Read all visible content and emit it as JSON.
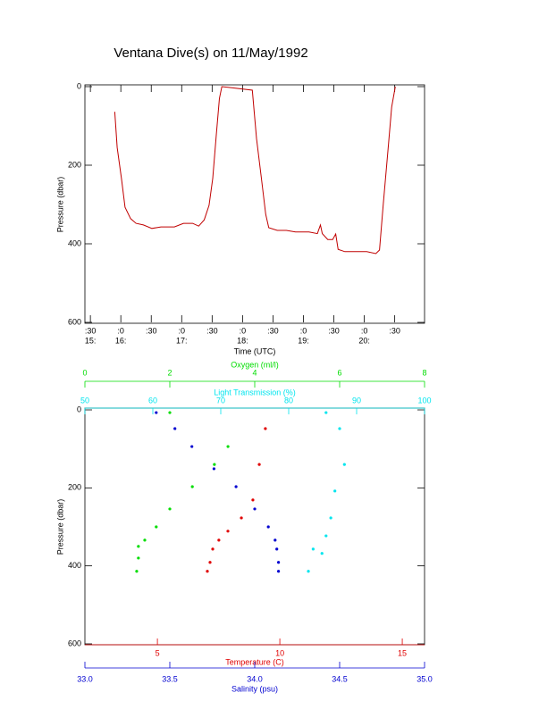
{
  "chart_data": [
    {
      "type": "line",
      "title": "Ventana Dive(s) on 11/May/1992",
      "xlabel": "Time (UTC)",
      "ylabel": "Pressure (dbar)",
      "xlim": [
        15.41,
        20.99
      ],
      "ylim": [
        600,
        0
      ],
      "xticks": [
        {
          "value": 15.5,
          "label": ":30"
        },
        {
          "value": 16,
          "label": ":0"
        },
        {
          "value": 16.5,
          "label": ":30"
        },
        {
          "value": 17,
          "label": ":0"
        },
        {
          "value": 17.5,
          "label": ":30"
        },
        {
          "value": 18,
          "label": ":0"
        },
        {
          "value": 18.5,
          "label": ":30"
        },
        {
          "value": 19,
          "label": ":0"
        },
        {
          "value": 19.5,
          "label": ":30"
        },
        {
          "value": 20,
          "label": ":0"
        },
        {
          "value": 20.5,
          "label": ":30"
        }
      ],
      "xticks_hours": [
        {
          "value": 15.5,
          "label": "15:"
        },
        {
          "value": 16,
          "label": "16:"
        },
        {
          "value": 17,
          "label": "17:"
        },
        {
          "value": 18,
          "label": "18:"
        },
        {
          "value": 19,
          "label": "19:"
        },
        {
          "value": 20,
          "label": "20:"
        }
      ],
      "yticks": [
        0,
        200,
        400,
        600
      ],
      "color": "#c00000",
      "x": [
        15.9,
        15.94,
        16.01,
        16.07,
        16.16,
        16.25,
        16.37,
        16.51,
        16.66,
        16.88,
        17.03,
        17.18,
        17.28,
        17.37,
        17.45,
        17.51,
        17.57,
        17.62,
        17.66,
        18.16,
        18.23,
        18.31,
        18.38,
        18.43,
        18.57,
        18.72,
        18.87,
        19.09,
        19.23,
        19.28,
        19.31,
        19.4,
        19.48,
        19.53,
        19.57,
        19.68,
        19.9,
        20.04,
        20.19,
        20.25,
        20.31,
        20.4,
        20.45,
        20.51
      ],
      "values": [
        64,
        155,
        234,
        307,
        336,
        348,
        352,
        361,
        357,
        357,
        348,
        348,
        355,
        339,
        302,
        234,
        120,
        30,
        0,
        9,
        132,
        234,
        325,
        359,
        366,
        366,
        370,
        370,
        374,
        352,
        374,
        389,
        389,
        375,
        414,
        420,
        420,
        420,
        425,
        416,
        302,
        143,
        52,
        0
      ]
    },
    {
      "type": "scatter",
      "ylabel": "Pressure (dbar)",
      "ylim": [
        600,
        0
      ],
      "yticks": [
        0,
        200,
        400,
        600
      ],
      "x_axes": [
        {
          "label": "Oxygen (ml/l)",
          "color": "#00dd00",
          "position": "top-outer",
          "xlim": [
            0,
            8
          ],
          "xticks": [
            0,
            2,
            4,
            6,
            8
          ]
        },
        {
          "label": "Light Transmission (%)",
          "color": "#00e5ee",
          "position": "top",
          "xlim": [
            50,
            100
          ],
          "xticks": [
            50,
            60,
            70,
            80,
            90,
            100
          ]
        },
        {
          "label": "Temperature (C)",
          "color": "#e00000",
          "position": "bottom",
          "xlim": [
            2.04,
            15.91
          ],
          "xticks": [
            5,
            10,
            15
          ]
        },
        {
          "label": "Salinity (psu)",
          "color": "#0000d0",
          "position": "bottom-outer",
          "xlim": [
            33,
            35
          ],
          "xticks": [
            {
              "value": 33,
              "label": "33.0"
            },
            33.5,
            {
              "value": 34,
              "label": "34.0"
            },
            34.5,
            {
              "value": 35,
              "label": "35.0"
            }
          ]
        }
      ],
      "series": [
        {
          "x_axis": 0,
          "color": "#00dd00",
          "x": [
            2.0,
            3.37,
            3.05,
            2.53,
            2.0,
            1.68,
            1.41,
            1.26,
            1.26,
            1.22
          ],
          "y": [
            7,
            94,
            140,
            197,
            254,
            300,
            334,
            350,
            380,
            414
          ]
        },
        {
          "x_axis": 1,
          "color": "#00e5ee",
          "x": [
            85.5,
            87.5,
            88.2,
            86.8,
            86.2,
            85.5,
            83.6,
            84.9,
            82.9
          ],
          "y": [
            7,
            48,
            140,
            208,
            277,
            323,
            357,
            368,
            414
          ]
        },
        {
          "x_axis": 2,
          "color": "#e00000",
          "x": [
            9.41,
            9.16,
            8.9,
            8.43,
            7.88,
            7.51,
            7.26,
            7.15,
            7.04
          ],
          "y": [
            48,
            140,
            231,
            277,
            311,
            334,
            357,
            391,
            414
          ]
        },
        {
          "x_axis": 3,
          "color": "#0000d0",
          "x": [
            33.42,
            33.53,
            33.63,
            33.76,
            33.89,
            34.0,
            34.08,
            34.12,
            34.13,
            34.14,
            34.14
          ],
          "y": [
            7,
            48,
            94,
            151,
            197,
            254,
            300,
            334,
            357,
            391,
            414
          ]
        }
      ]
    }
  ]
}
